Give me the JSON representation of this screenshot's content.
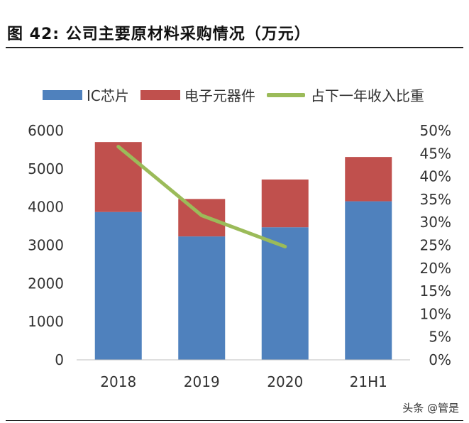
{
  "page": {
    "title": "图  42:  公司主要原材料采购情况（万元）",
    "watermark": "头条 @管是"
  },
  "colors": {
    "ic": "#4f81bd",
    "electronic": "#c0504d",
    "ratio": "#9bbb59",
    "axis_text": "#333333"
  },
  "chart_data": {
    "type": "bar",
    "stacked": true,
    "categories": [
      "2018",
      "2019",
      "2020",
      "21H1"
    ],
    "series": [
      {
        "name": "IC芯片",
        "values": [
          3870,
          3230,
          3470,
          4150
        ]
      },
      {
        "name": "电子元器件",
        "values": [
          1830,
          980,
          1250,
          1160
        ]
      }
    ],
    "line_series": [
      {
        "name": "占下一年收入比重",
        "axis": "right",
        "values": [
          0.465,
          0.315,
          0.247,
          null
        ]
      }
    ],
    "ylim": [
      0,
      6000
    ],
    "yticks": [
      "0",
      "1000",
      "2000",
      "3000",
      "4000",
      "5000",
      "6000"
    ],
    "y2lim": [
      0,
      0.5
    ],
    "y2ticks": [
      "0%",
      "5%",
      "10%",
      "15%",
      "20%",
      "25%",
      "30%",
      "35%",
      "40%",
      "45%",
      "50%"
    ],
    "legend": "top",
    "grid": false
  }
}
